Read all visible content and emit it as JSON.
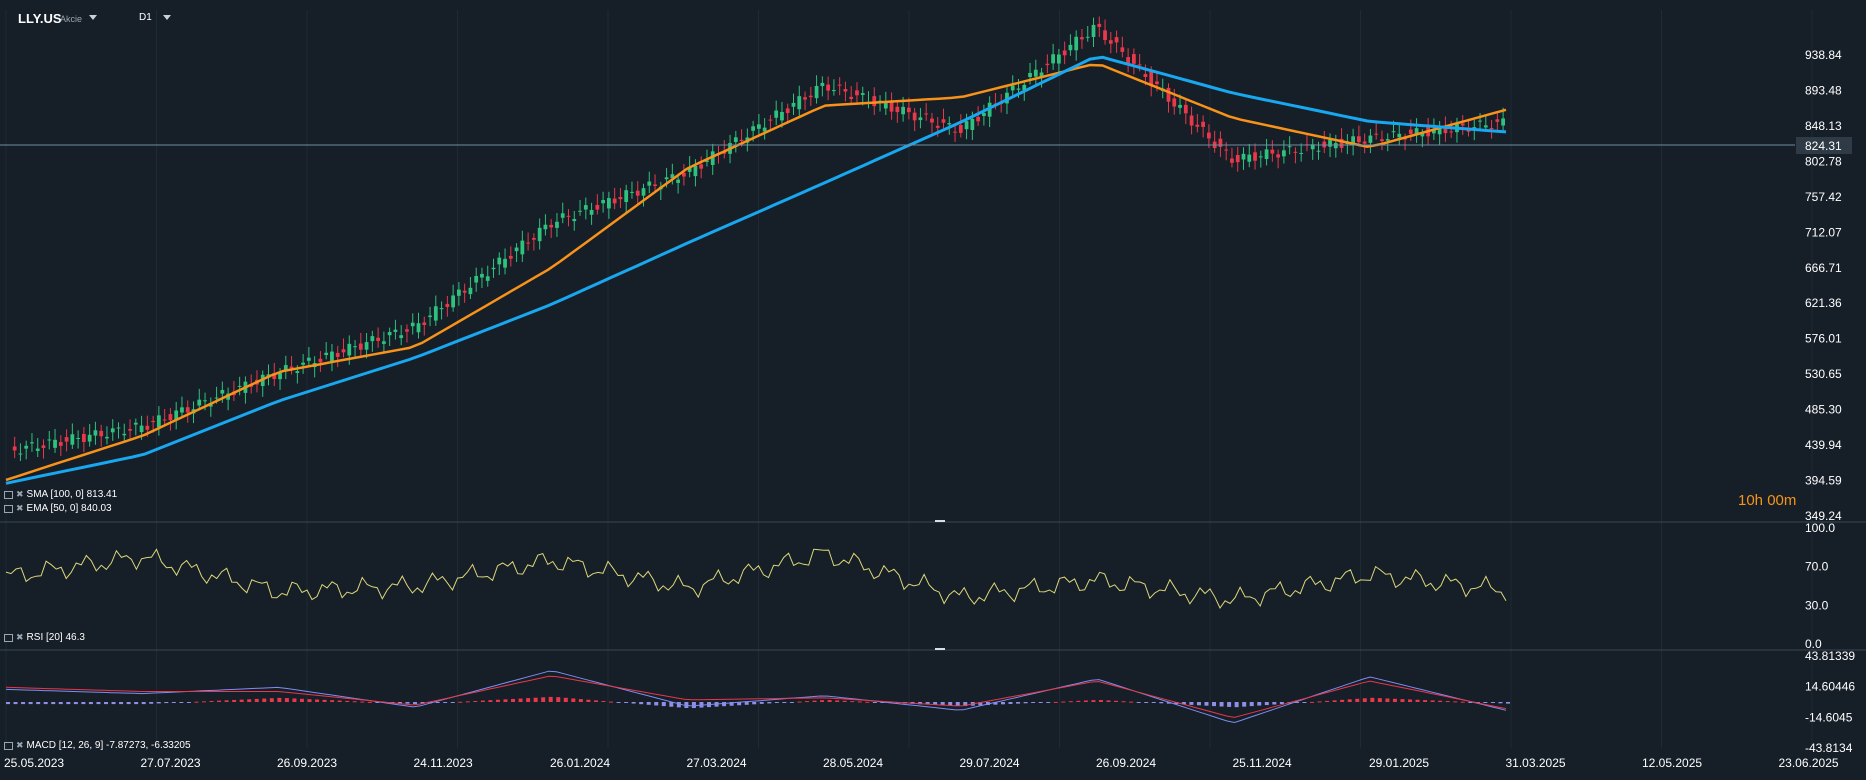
{
  "header": {
    "symbol": "LLY.US",
    "symbol_type": "Akcie",
    "timeframe": "D1"
  },
  "price_panel": {
    "y_ticks": [
      "938.84",
      "893.48",
      "848.13",
      "802.78",
      "757.42",
      "712.07",
      "666.71",
      "621.36",
      "576.01",
      "530.65",
      "485.30",
      "439.94",
      "394.59",
      "349.24"
    ],
    "current_price": "824.31",
    "timer": "10h 00m",
    "indicators": [
      {
        "label": "SMA [100, 0] 813.41",
        "color": "#19a7f0"
      },
      {
        "label": "EMA [50, 0] 840.03",
        "color": "#f7931a"
      }
    ]
  },
  "rsi_panel": {
    "y_ticks": [
      "100.0",
      "70.0",
      "30.0",
      "0.0"
    ],
    "label": "RSI [20] 46.3"
  },
  "macd_panel": {
    "y_ticks": [
      "43.81339",
      "14.60446",
      "-14.6045",
      "-43.8134"
    ],
    "label": "MACD [12, 26, 9] -7.87273, -6.33205"
  },
  "x_axis": {
    "labels": [
      "25.05.2023",
      "27.07.2023",
      "26.09.2023",
      "24.11.2023",
      "26.01.2024",
      "27.03.2024",
      "28.05.2024",
      "29.07.2024",
      "26.09.2024",
      "25.11.2024",
      "29.01.2025",
      "31.03.2025",
      "12.05.2025",
      "23.06.2025"
    ]
  },
  "colors": {
    "background": "#161e27",
    "up_candle": "#2ec27e",
    "down_candle": "#e8384a",
    "sma": "#19a7f0",
    "ema": "#f7931a",
    "rsi_line": "#dcd77a",
    "macd_line": "#7d8df2",
    "signal_line": "#e8384a",
    "hist_positive": "#e8384a",
    "hist_negative": "#8f8fe8",
    "price_line": "#6e8ea6"
  },
  "chart_data": [
    {
      "type": "candlestick",
      "title": "LLY.US D1",
      "ylim": [
        349.24,
        960
      ],
      "x": [
        "25.05.2023",
        "27.07.2023",
        "26.09.2023",
        "24.11.2023",
        "26.01.2024",
        "27.03.2024",
        "28.05.2024",
        "29.07.2024",
        "26.09.2024",
        "25.11.2024",
        "29.01.2025",
        "24.03.2025"
      ],
      "close": [
        430,
        460,
        525,
        580,
        705,
        765,
        870,
        815,
        940,
        780,
        805,
        824.31
      ],
      "series": [
        {
          "name": "SMA [100, 0]",
          "x": [
            "25.05.2023",
            "27.07.2023",
            "26.09.2023",
            "24.11.2023",
            "26.01.2024",
            "27.03.2024",
            "28.05.2024",
            "29.07.2024",
            "26.09.2024",
            "25.11.2024",
            "29.01.2025",
            "24.03.2025"
          ],
          "values": [
            391,
            425,
            490,
            542,
            606,
            680,
            752,
            825,
            905,
            860,
            826,
            813.41
          ]
        },
        {
          "name": "EMA [50, 0]",
          "x": [
            "25.05.2023",
            "27.07.2023",
            "26.09.2023",
            "24.11.2023",
            "26.01.2024",
            "27.03.2024",
            "28.05.2024",
            "29.07.2024",
            "26.09.2024",
            "25.11.2024",
            "29.01.2025",
            "24.03.2025"
          ],
          "values": [
            395,
            448,
            525,
            555,
            650,
            770,
            845,
            855,
            896,
            830,
            795,
            840.03
          ]
        }
      ]
    },
    {
      "type": "line",
      "name": "RSI [20]",
      "ylim": [
        0,
        100
      ],
      "x": [
        "25.05.2023",
        "27.07.2023",
        "26.09.2023",
        "24.11.2023",
        "26.01.2024",
        "27.03.2024",
        "28.05.2024",
        "29.07.2024",
        "26.09.2024",
        "25.11.2024",
        "29.01.2025",
        "24.03.2025"
      ],
      "values": [
        58,
        75,
        45,
        50,
        72,
        48,
        78,
        40,
        55,
        38,
        60,
        46.3
      ]
    },
    {
      "type": "line",
      "name": "MACD [12, 26, 9]",
      "ylim": [
        -43.8134,
        43.81339
      ],
      "x": [
        "25.05.2023",
        "27.07.2023",
        "26.09.2023",
        "24.11.2023",
        "26.01.2024",
        "27.03.2024",
        "28.05.2024",
        "29.07.2024",
        "26.09.2024",
        "25.11.2024",
        "29.01.2025",
        "24.03.2025"
      ],
      "series": [
        {
          "name": "MACD",
          "values": [
            12,
            8,
            14,
            -5,
            30,
            -4,
            6,
            -8,
            22,
            -20,
            24,
            -7.87273
          ]
        },
        {
          "name": "Signal",
          "values": [
            14,
            10,
            10,
            -3,
            25,
            2,
            4,
            -4,
            20,
            -15,
            20,
            -6.33205
          ]
        }
      ]
    }
  ]
}
